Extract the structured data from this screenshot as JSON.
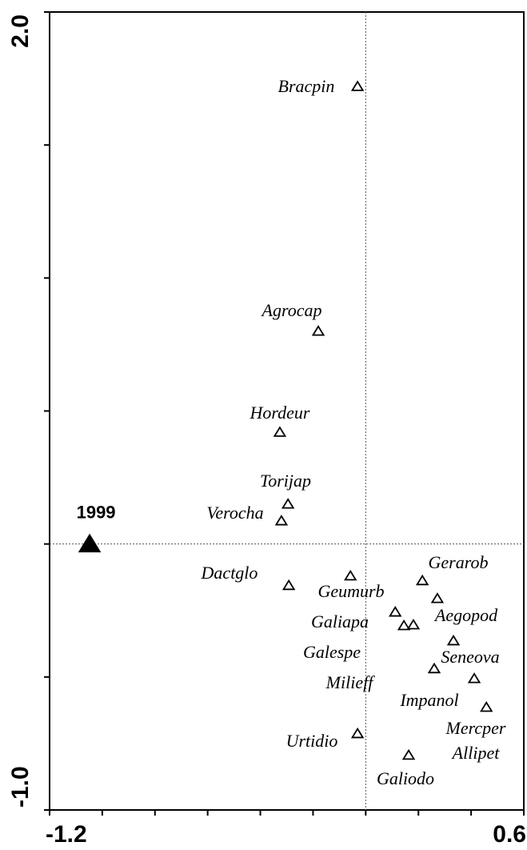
{
  "chart_data": {
    "type": "scatter",
    "xlim": [
      -1.2,
      0.6
    ],
    "ylim": [
      -1.0,
      2.0
    ],
    "xticks": [
      {
        "value": -1.2,
        "label": "-1.2"
      },
      {
        "value": 0.6,
        "label": "0.6"
      }
    ],
    "yticks": [
      {
        "value": -1.0,
        "label": "-1.0"
      },
      {
        "value": 2.0,
        "label": "2.0"
      }
    ],
    "xminor_ticks": [
      -1.0,
      -0.8,
      -0.6,
      -0.4,
      -0.2,
      0,
      0.2,
      0.4
    ],
    "yminor_ticks": [
      -0.5,
      0,
      0.5,
      1.0,
      1.5
    ],
    "reference_lines": {
      "x": 0,
      "y": 0
    },
    "series": [
      {
        "name": "1999",
        "color": "#000000",
        "filled": true,
        "x": [
          -1.048
        ],
        "values": [
          0
        ]
      },
      {
        "color": "#000000",
        "filled": false,
        "labels": [
          "Bracpin",
          "Agrocap",
          "Hordeur",
          "Torijap",
          "Verocha",
          "Dactglo",
          "Geumurb",
          "Gerarob",
          "Aegopod",
          "Galiapa",
          "Galespe",
          "Milieff",
          "Seneova",
          "Impanol",
          "Allipet",
          "Mercper",
          "Urtidio",
          "Galiodo"
        ],
        "x": [
          -0.031,
          -0.18,
          -0.326,
          -0.295,
          -0.32,
          -0.292,
          -0.058,
          0.215,
          0.272,
          0.112,
          0.145,
          0.181,
          0.333,
          0.26,
          0.412,
          0.458,
          -0.031,
          0.163
        ],
        "values": [
          1.72,
          0.8,
          0.42,
          0.15,
          0.087,
          -0.156,
          -0.12,
          -0.138,
          -0.205,
          -0.256,
          -0.307,
          -0.304,
          -0.364,
          -0.469,
          -0.506,
          -0.614,
          -0.713,
          -0.794
        ]
      }
    ]
  }
}
